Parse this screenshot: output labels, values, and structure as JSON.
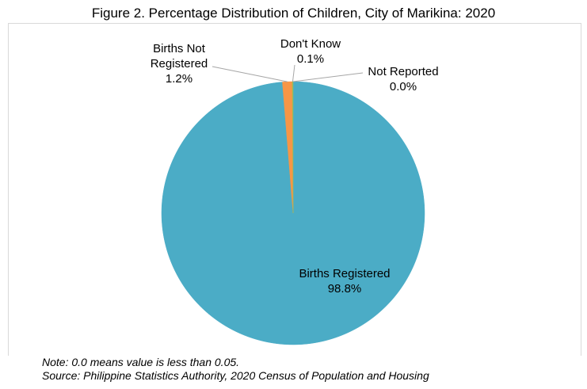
{
  "chart_data": {
    "type": "pie",
    "title": "Figure 2. Percentage Distribution of Children, City of Marikina: 2020",
    "slices": [
      {
        "name": "Births Registered",
        "value": 98.8,
        "label": "98.8%",
        "color": "#4bacc6"
      },
      {
        "name": "Births Not Registered",
        "value": 1.2,
        "label": "1.2%",
        "color": "#f79646"
      },
      {
        "name": "Don't Know",
        "value": 0.1,
        "label": "0.1%",
        "color": "#9bbb59"
      },
      {
        "name": "Not Reported",
        "value": 0.0,
        "label": "0.0%",
        "color": "#8064a2"
      }
    ],
    "legend": "none"
  },
  "notes": {
    "note": "Note: 0.0 means value is less than 0.05.",
    "source": "Source: Philippine Statistics Authority, 2020 Census of Population and Housing"
  }
}
